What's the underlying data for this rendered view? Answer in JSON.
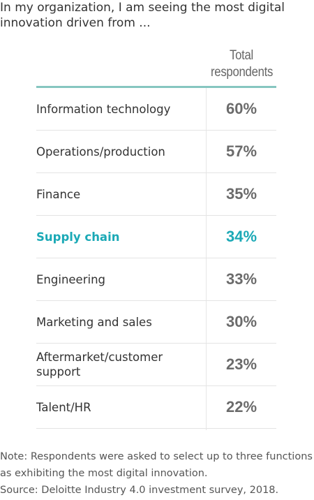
{
  "title": "In my organization, I am seeing the most digital innovation driven from ...",
  "column_header": "Total respondents",
  "note": "Note: Respondents were asked to select up to three functions as exhibiting the most digital innovation.",
  "source": "Source: Deloitte Industry 4.0 investment survey, 2018.",
  "colors": {
    "accent": "#1ba9b6",
    "rule": "#86c6c0",
    "value_text": "#6b6b6b"
  },
  "chart_data": {
    "type": "table",
    "title": "In my organization, I am seeing the most digital innovation driven from ...",
    "columns": [
      "Total respondents"
    ],
    "rows": [
      {
        "label": "Information technology",
        "value": "60%",
        "highlight": false
      },
      {
        "label": "Operations/production",
        "value": "57%",
        "highlight": false
      },
      {
        "label": "Finance",
        "value": "35%",
        "highlight": false
      },
      {
        "label": "Supply chain",
        "value": "34%",
        "highlight": true
      },
      {
        "label": "Engineering",
        "value": "33%",
        "highlight": false
      },
      {
        "label": "Marketing and sales",
        "value": "30%",
        "highlight": false
      },
      {
        "label": "Aftermarket/customer support",
        "value": "23%",
        "highlight": false
      },
      {
        "label": "Talent/HR",
        "value": "22%",
        "highlight": false
      }
    ]
  }
}
